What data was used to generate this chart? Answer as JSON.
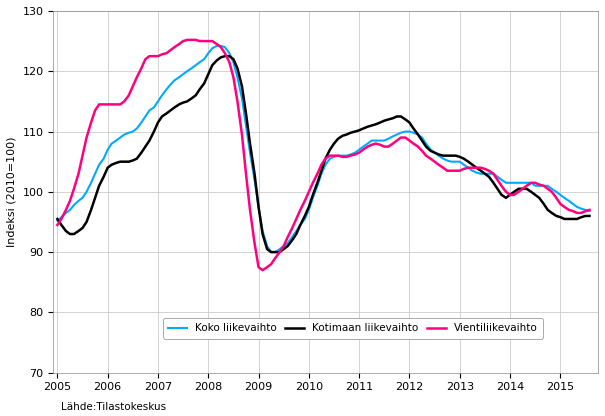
{
  "ylabel": "Indeksi (2010=100)",
  "source": "Lähde:Tilastokeskus",
  "ylim": [
    70,
    130
  ],
  "yticks": [
    70,
    80,
    90,
    100,
    110,
    120,
    130
  ],
  "xmin": 2004.92,
  "xmax": 2015.75,
  "xticks": [
    2005,
    2006,
    2007,
    2008,
    2009,
    2010,
    2011,
    2012,
    2013,
    2014,
    2015
  ],
  "color_koko": "#00AAFF",
  "color_kotimaan": "#000000",
  "color_vienti": "#FF0080",
  "legend_labels": [
    "Koko liikevaihto",
    "Kotimaan liikevaihto",
    "Vientiliikevaihto"
  ],
  "koko_liikevaihto": {
    "t": [
      2005.0,
      2005.08,
      2005.17,
      2005.25,
      2005.33,
      2005.42,
      2005.5,
      2005.58,
      2005.67,
      2005.75,
      2005.83,
      2005.92,
      2006.0,
      2006.08,
      2006.17,
      2006.25,
      2006.33,
      2006.42,
      2006.5,
      2006.58,
      2006.67,
      2006.75,
      2006.83,
      2006.92,
      2007.0,
      2007.08,
      2007.17,
      2007.25,
      2007.33,
      2007.42,
      2007.5,
      2007.58,
      2007.67,
      2007.75,
      2007.83,
      2007.92,
      2008.0,
      2008.08,
      2008.17,
      2008.25,
      2008.33,
      2008.42,
      2008.5,
      2008.58,
      2008.67,
      2008.75,
      2008.83,
      2008.92,
      2009.0,
      2009.08,
      2009.17,
      2009.25,
      2009.33,
      2009.42,
      2009.5,
      2009.58,
      2009.67,
      2009.75,
      2009.83,
      2009.92,
      2010.0,
      2010.08,
      2010.17,
      2010.25,
      2010.33,
      2010.42,
      2010.5,
      2010.58,
      2010.67,
      2010.75,
      2010.83,
      2010.92,
      2011.0,
      2011.08,
      2011.17,
      2011.25,
      2011.33,
      2011.42,
      2011.5,
      2011.58,
      2011.67,
      2011.75,
      2011.83,
      2011.92,
      2012.0,
      2012.08,
      2012.17,
      2012.25,
      2012.33,
      2012.42,
      2012.5,
      2012.58,
      2012.67,
      2012.75,
      2012.83,
      2012.92,
      2013.0,
      2013.08,
      2013.17,
      2013.25,
      2013.33,
      2013.42,
      2013.5,
      2013.58,
      2013.67,
      2013.75,
      2013.83,
      2013.92,
      2014.0,
      2014.08,
      2014.17,
      2014.25,
      2014.33,
      2014.42,
      2014.5,
      2014.58,
      2014.67,
      2014.75,
      2014.83,
      2014.92,
      2015.0,
      2015.08,
      2015.17,
      2015.25,
      2015.33,
      2015.42,
      2015.5,
      2015.58
    ],
    "v": [
      95.2,
      95.8,
      96.5,
      97.0,
      97.8,
      98.5,
      99.0,
      100.0,
      101.5,
      103.0,
      104.5,
      105.5,
      107.0,
      108.0,
      108.5,
      109.0,
      109.5,
      109.8,
      110.0,
      110.5,
      111.5,
      112.5,
      113.5,
      114.0,
      115.0,
      116.0,
      117.0,
      117.8,
      118.5,
      119.0,
      119.5,
      120.0,
      120.5,
      121.0,
      121.5,
      122.0,
      123.0,
      123.8,
      124.2,
      124.2,
      124.0,
      123.0,
      121.5,
      119.0,
      115.5,
      111.0,
      106.5,
      102.0,
      97.5,
      93.5,
      91.0,
      90.0,
      90.0,
      90.5,
      91.0,
      91.5,
      92.5,
      93.5,
      94.5,
      95.5,
      97.0,
      99.0,
      101.0,
      103.0,
      104.5,
      105.5,
      105.8,
      106.0,
      106.0,
      106.0,
      106.2,
      106.5,
      107.0,
      107.5,
      108.0,
      108.5,
      108.5,
      108.5,
      108.5,
      108.8,
      109.2,
      109.5,
      109.8,
      110.0,
      110.0,
      109.8,
      109.5,
      109.0,
      108.0,
      107.0,
      106.5,
      106.0,
      105.5,
      105.2,
      105.0,
      105.0,
      105.0,
      104.5,
      104.0,
      103.5,
      103.2,
      103.0,
      103.0,
      103.0,
      103.0,
      102.5,
      102.0,
      101.5,
      101.5,
      101.5,
      101.5,
      101.5,
      101.5,
      101.5,
      101.0,
      101.0,
      101.0,
      101.0,
      100.5,
      100.0,
      99.5,
      99.0,
      98.5,
      98.0,
      97.5,
      97.2,
      97.0,
      96.8
    ]
  },
  "kotimaan_liikevaihto": {
    "t": [
      2005.0,
      2005.08,
      2005.17,
      2005.25,
      2005.33,
      2005.42,
      2005.5,
      2005.58,
      2005.67,
      2005.75,
      2005.83,
      2005.92,
      2006.0,
      2006.08,
      2006.17,
      2006.25,
      2006.33,
      2006.42,
      2006.5,
      2006.58,
      2006.67,
      2006.75,
      2006.83,
      2006.92,
      2007.0,
      2007.08,
      2007.17,
      2007.25,
      2007.33,
      2007.42,
      2007.5,
      2007.58,
      2007.67,
      2007.75,
      2007.83,
      2007.92,
      2008.0,
      2008.08,
      2008.17,
      2008.25,
      2008.33,
      2008.42,
      2008.5,
      2008.58,
      2008.67,
      2008.75,
      2008.83,
      2008.92,
      2009.0,
      2009.08,
      2009.17,
      2009.25,
      2009.33,
      2009.42,
      2009.5,
      2009.58,
      2009.67,
      2009.75,
      2009.83,
      2009.92,
      2010.0,
      2010.08,
      2010.17,
      2010.25,
      2010.33,
      2010.42,
      2010.5,
      2010.58,
      2010.67,
      2010.75,
      2010.83,
      2010.92,
      2011.0,
      2011.08,
      2011.17,
      2011.25,
      2011.33,
      2011.42,
      2011.5,
      2011.58,
      2011.67,
      2011.75,
      2011.83,
      2011.92,
      2012.0,
      2012.08,
      2012.17,
      2012.25,
      2012.33,
      2012.42,
      2012.5,
      2012.58,
      2012.67,
      2012.75,
      2012.83,
      2012.92,
      2013.0,
      2013.08,
      2013.17,
      2013.25,
      2013.33,
      2013.42,
      2013.5,
      2013.58,
      2013.67,
      2013.75,
      2013.83,
      2013.92,
      2014.0,
      2014.08,
      2014.17,
      2014.25,
      2014.33,
      2014.42,
      2014.5,
      2014.58,
      2014.67,
      2014.75,
      2014.83,
      2014.92,
      2015.0,
      2015.08,
      2015.17,
      2015.25,
      2015.33,
      2015.42,
      2015.5,
      2015.58
    ],
    "v": [
      95.5,
      94.5,
      93.5,
      93.0,
      93.0,
      93.5,
      94.0,
      95.0,
      97.0,
      99.0,
      101.0,
      102.5,
      104.0,
      104.5,
      104.8,
      105.0,
      105.0,
      105.0,
      105.2,
      105.5,
      106.5,
      107.5,
      108.5,
      110.0,
      111.5,
      112.5,
      113.0,
      113.5,
      114.0,
      114.5,
      114.8,
      115.0,
      115.5,
      116.0,
      117.0,
      118.0,
      119.5,
      121.0,
      121.8,
      122.3,
      122.5,
      122.5,
      122.0,
      120.5,
      117.5,
      113.0,
      108.0,
      103.0,
      97.5,
      93.0,
      90.5,
      90.0,
      90.0,
      90.0,
      90.5,
      91.0,
      92.0,
      93.0,
      94.5,
      96.0,
      97.5,
      99.5,
      101.5,
      103.5,
      105.5,
      107.0,
      108.0,
      108.8,
      109.3,
      109.5,
      109.8,
      110.0,
      110.2,
      110.5,
      110.8,
      111.0,
      111.2,
      111.5,
      111.8,
      112.0,
      112.2,
      112.5,
      112.5,
      112.0,
      111.5,
      110.5,
      109.5,
      108.5,
      107.5,
      106.8,
      106.5,
      106.2,
      106.0,
      106.0,
      106.0,
      106.0,
      105.8,
      105.5,
      105.0,
      104.5,
      104.0,
      103.5,
      103.0,
      102.5,
      101.5,
      100.5,
      99.5,
      99.0,
      99.5,
      100.0,
      100.5,
      100.5,
      100.5,
      100.0,
      99.5,
      99.0,
      98.0,
      97.0,
      96.5,
      96.0,
      95.8,
      95.5,
      95.5,
      95.5,
      95.5,
      95.8,
      96.0,
      96.0
    ]
  },
  "vienti_liikevaihto": {
    "t": [
      2005.0,
      2005.08,
      2005.17,
      2005.25,
      2005.33,
      2005.42,
      2005.5,
      2005.58,
      2005.67,
      2005.75,
      2005.83,
      2005.92,
      2006.0,
      2006.08,
      2006.17,
      2006.25,
      2006.33,
      2006.42,
      2006.5,
      2006.58,
      2006.67,
      2006.75,
      2006.83,
      2006.92,
      2007.0,
      2007.08,
      2007.17,
      2007.25,
      2007.33,
      2007.42,
      2007.5,
      2007.58,
      2007.67,
      2007.75,
      2007.83,
      2007.92,
      2008.0,
      2008.08,
      2008.17,
      2008.25,
      2008.33,
      2008.42,
      2008.5,
      2008.58,
      2008.67,
      2008.75,
      2008.83,
      2008.92,
      2009.0,
      2009.08,
      2009.17,
      2009.25,
      2009.33,
      2009.42,
      2009.5,
      2009.58,
      2009.67,
      2009.75,
      2009.83,
      2009.92,
      2010.0,
      2010.08,
      2010.17,
      2010.25,
      2010.33,
      2010.42,
      2010.5,
      2010.58,
      2010.67,
      2010.75,
      2010.83,
      2010.92,
      2011.0,
      2011.08,
      2011.17,
      2011.25,
      2011.33,
      2011.42,
      2011.5,
      2011.58,
      2011.67,
      2011.75,
      2011.83,
      2011.92,
      2012.0,
      2012.08,
      2012.17,
      2012.25,
      2012.33,
      2012.42,
      2012.5,
      2012.58,
      2012.67,
      2012.75,
      2012.83,
      2012.92,
      2013.0,
      2013.08,
      2013.17,
      2013.25,
      2013.33,
      2013.42,
      2013.5,
      2013.58,
      2013.67,
      2013.75,
      2013.83,
      2013.92,
      2014.0,
      2014.08,
      2014.17,
      2014.25,
      2014.33,
      2014.42,
      2014.5,
      2014.58,
      2014.67,
      2014.75,
      2014.83,
      2014.92,
      2015.0,
      2015.08,
      2015.17,
      2015.25,
      2015.33,
      2015.42,
      2015.5,
      2015.58
    ],
    "v": [
      94.5,
      95.5,
      97.0,
      98.5,
      100.5,
      103.0,
      106.0,
      109.0,
      111.5,
      113.5,
      114.5,
      114.5,
      114.5,
      114.5,
      114.5,
      114.5,
      115.0,
      116.0,
      117.5,
      119.0,
      120.5,
      122.0,
      122.5,
      122.5,
      122.5,
      122.8,
      123.0,
      123.5,
      124.0,
      124.5,
      125.0,
      125.2,
      125.2,
      125.2,
      125.0,
      125.0,
      125.0,
      125.0,
      124.5,
      124.0,
      123.0,
      121.5,
      119.0,
      115.0,
      109.5,
      103.0,
      97.0,
      91.5,
      87.5,
      87.0,
      87.5,
      88.0,
      89.0,
      90.0,
      91.0,
      92.5,
      94.0,
      95.5,
      97.0,
      98.5,
      100.0,
      101.5,
      103.0,
      104.5,
      105.5,
      106.0,
      106.0,
      106.0,
      105.8,
      105.8,
      106.0,
      106.2,
      106.5,
      107.0,
      107.5,
      107.8,
      108.0,
      107.8,
      107.5,
      107.5,
      108.0,
      108.5,
      109.0,
      109.0,
      108.5,
      108.0,
      107.5,
      106.8,
      106.0,
      105.5,
      105.0,
      104.5,
      104.0,
      103.5,
      103.5,
      103.5,
      103.5,
      103.8,
      104.0,
      104.0,
      104.0,
      104.0,
      103.8,
      103.5,
      103.0,
      102.0,
      101.0,
      100.0,
      99.5,
      99.5,
      100.0,
      100.5,
      101.0,
      101.5,
      101.5,
      101.2,
      101.0,
      100.5,
      100.0,
      99.0,
      98.0,
      97.5,
      97.0,
      96.8,
      96.5,
      96.5,
      96.8,
      97.0
    ]
  }
}
